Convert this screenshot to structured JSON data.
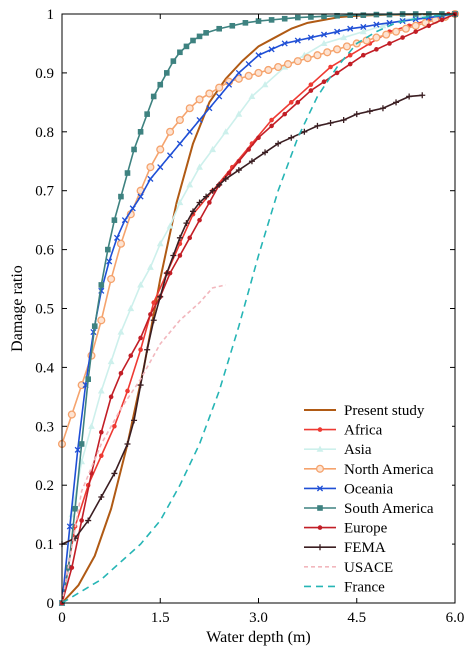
{
  "chart_data": {
    "type": "line",
    "xlabel": "Water depth (m)",
    "ylabel": "Damage ratio",
    "xlim": [
      0,
      6
    ],
    "ylim": [
      0,
      1
    ],
    "x_ticks": [
      0,
      1.5,
      3.0,
      4.5,
      6.0
    ],
    "x_tick_labels": [
      "0",
      "1.5",
      "3.0",
      "4.5",
      "6.0"
    ],
    "y_ticks": [
      0,
      0.1,
      0.2,
      0.3,
      0.4,
      0.5,
      0.6,
      0.7,
      0.8,
      0.9,
      1
    ],
    "y_tick_labels": [
      "0",
      "0.1",
      "0.2",
      "0.3",
      "0.4",
      "0.5",
      "0.6",
      "0.7",
      "0.8",
      "0.9",
      "1"
    ],
    "grid": false,
    "legend_position": "bottom-right",
    "series": [
      {
        "name": "Present study",
        "color": "#b05a14",
        "marker": "none",
        "dash": "",
        "x": [
          0,
          0.25,
          0.5,
          0.75,
          1.0,
          1.25,
          1.5,
          1.75,
          2.0,
          2.25,
          2.5,
          2.75,
          3.0,
          3.25,
          3.5,
          3.75,
          4.0,
          4.25,
          4.5,
          5.0,
          6.0
        ],
        "y": [
          0,
          0.03,
          0.08,
          0.16,
          0.27,
          0.4,
          0.55,
          0.68,
          0.78,
          0.85,
          0.89,
          0.92,
          0.945,
          0.96,
          0.975,
          0.985,
          0.99,
          0.995,
          0.997,
          0.999,
          1.0
        ]
      },
      {
        "name": "Africa",
        "color": "#ee3a33",
        "marker": "dot",
        "dash": "",
        "x": [
          0,
          0.2,
          0.4,
          0.6,
          0.8,
          1.0,
          1.2,
          1.4,
          1.6,
          1.8,
          2.0,
          2.3,
          2.6,
          2.9,
          3.2,
          3.5,
          3.8,
          4.1,
          4.4,
          4.7,
          5.0,
          5.3,
          5.6,
          5.9
        ],
        "y": [
          0,
          0.13,
          0.2,
          0.25,
          0.3,
          0.36,
          0.43,
          0.51,
          0.56,
          0.61,
          0.66,
          0.7,
          0.74,
          0.78,
          0.82,
          0.85,
          0.88,
          0.91,
          0.93,
          0.95,
          0.97,
          0.98,
          0.99,
          1.0
        ]
      },
      {
        "name": "Asia",
        "color": "#cdf0ec",
        "marker": "triangle",
        "dash": "",
        "x": [
          0,
          0.15,
          0.3,
          0.45,
          0.6,
          0.75,
          0.9,
          1.05,
          1.2,
          1.35,
          1.5,
          1.65,
          1.8,
          1.95,
          2.1,
          2.3,
          2.5,
          2.7,
          2.9,
          3.1,
          3.4,
          3.7,
          4.0,
          4.3,
          4.6,
          4.9,
          5.2,
          5.5,
          5.8
        ],
        "y": [
          0,
          0.15,
          0.24,
          0.3,
          0.36,
          0.41,
          0.46,
          0.5,
          0.54,
          0.57,
          0.61,
          0.64,
          0.68,
          0.71,
          0.74,
          0.77,
          0.8,
          0.83,
          0.86,
          0.88,
          0.91,
          0.93,
          0.95,
          0.96,
          0.97,
          0.98,
          0.99,
          0.995,
          1.0
        ]
      },
      {
        "name": "North America",
        "color": "#f5a36d",
        "marker": "circle",
        "dash": "",
        "x": [
          0,
          0.15,
          0.3,
          0.45,
          0.6,
          0.75,
          0.9,
          1.05,
          1.2,
          1.35,
          1.5,
          1.65,
          1.8,
          1.95,
          2.1,
          2.25,
          2.4,
          2.55,
          2.7,
          2.85,
          3.0,
          3.15,
          3.3,
          3.45,
          3.6,
          3.75,
          3.9,
          4.05,
          4.2,
          4.35,
          4.5,
          4.65,
          4.8,
          4.95,
          5.1,
          5.25,
          5.4,
          5.55,
          5.7,
          5.85,
          6.0
        ],
        "y": [
          0.27,
          0.32,
          0.37,
          0.42,
          0.48,
          0.55,
          0.61,
          0.66,
          0.7,
          0.74,
          0.77,
          0.8,
          0.82,
          0.84,
          0.855,
          0.865,
          0.875,
          0.885,
          0.89,
          0.895,
          0.9,
          0.905,
          0.91,
          0.915,
          0.92,
          0.925,
          0.93,
          0.935,
          0.94,
          0.945,
          0.95,
          0.955,
          0.96,
          0.965,
          0.97,
          0.975,
          0.98,
          0.985,
          0.99,
          0.995,
          1.0
        ]
      },
      {
        "name": "Oceania",
        "color": "#1f4fd6",
        "marker": "x",
        "dash": "",
        "x": [
          0,
          0.12,
          0.24,
          0.36,
          0.48,
          0.6,
          0.72,
          0.84,
          0.96,
          1.08,
          1.2,
          1.35,
          1.5,
          1.65,
          1.8,
          1.95,
          2.1,
          2.25,
          2.4,
          2.55,
          2.7,
          2.85,
          3.0,
          3.2,
          3.4,
          3.6,
          3.8,
          4.0,
          4.2,
          4.4,
          4.6,
          4.8,
          5.0,
          5.2,
          5.4,
          5.6,
          5.8,
          6.0
        ],
        "y": [
          0,
          0.13,
          0.26,
          0.37,
          0.46,
          0.53,
          0.58,
          0.62,
          0.65,
          0.67,
          0.69,
          0.72,
          0.74,
          0.76,
          0.78,
          0.8,
          0.82,
          0.84,
          0.86,
          0.88,
          0.9,
          0.915,
          0.93,
          0.94,
          0.95,
          0.955,
          0.96,
          0.965,
          0.97,
          0.975,
          0.978,
          0.982,
          0.985,
          0.988,
          0.991,
          0.994,
          0.997,
          1.0
        ]
      },
      {
        "name": "South America",
        "color": "#3e8280",
        "marker": "square",
        "dash": "",
        "x": [
          0,
          0.1,
          0.2,
          0.3,
          0.4,
          0.5,
          0.6,
          0.7,
          0.8,
          0.9,
          1.0,
          1.1,
          1.2,
          1.3,
          1.4,
          1.5,
          1.6,
          1.7,
          1.8,
          1.9,
          2.0,
          2.1,
          2.2,
          2.4,
          2.6,
          2.8,
          3.0,
          3.2,
          3.4,
          3.6,
          3.8,
          4.0,
          4.2,
          4.4,
          4.6,
          4.8,
          5.0,
          5.2,
          5.4,
          5.6,
          5.8,
          6.0
        ],
        "y": [
          0,
          0.06,
          0.16,
          0.27,
          0.38,
          0.47,
          0.54,
          0.6,
          0.65,
          0.69,
          0.73,
          0.77,
          0.8,
          0.83,
          0.86,
          0.88,
          0.9,
          0.92,
          0.935,
          0.945,
          0.955,
          0.962,
          0.968,
          0.975,
          0.98,
          0.985,
          0.988,
          0.99,
          0.992,
          0.994,
          0.995,
          0.996,
          0.997,
          0.998,
          0.998,
          0.999,
          0.999,
          1.0,
          1.0,
          1.0,
          1.0,
          1.0
        ]
      },
      {
        "name": "Europe",
        "color": "#c21e26",
        "marker": "dot",
        "dash": "",
        "x": [
          0,
          0.15,
          0.3,
          0.45,
          0.6,
          0.75,
          0.9,
          1.05,
          1.2,
          1.35,
          1.5,
          1.65,
          1.8,
          1.95,
          2.1,
          2.25,
          2.4,
          2.55,
          2.7,
          2.85,
          3.0,
          3.2,
          3.4,
          3.6,
          3.8,
          4.0,
          4.2,
          4.4,
          4.6,
          4.8,
          5.0,
          5.2,
          5.4,
          5.6,
          5.8,
          6.0
        ],
        "y": [
          0,
          0.06,
          0.14,
          0.22,
          0.29,
          0.35,
          0.39,
          0.42,
          0.45,
          0.49,
          0.52,
          0.56,
          0.59,
          0.62,
          0.65,
          0.68,
          0.71,
          0.73,
          0.75,
          0.77,
          0.79,
          0.81,
          0.83,
          0.85,
          0.87,
          0.885,
          0.9,
          0.915,
          0.93,
          0.94,
          0.95,
          0.96,
          0.97,
          0.98,
          0.99,
          1.0
        ]
      },
      {
        "name": "FEMA",
        "color": "#3b1e22",
        "marker": "plus",
        "dash": "",
        "x": [
          0,
          0.2,
          0.4,
          0.6,
          0.8,
          1.0,
          1.1,
          1.2,
          1.3,
          1.4,
          1.5,
          1.6,
          1.7,
          1.8,
          1.9,
          2.0,
          2.1,
          2.2,
          2.3,
          2.4,
          2.5,
          2.7,
          2.9,
          3.1,
          3.3,
          3.5,
          3.7,
          3.9,
          4.1,
          4.3,
          4.5,
          4.7,
          4.9,
          5.1,
          5.3,
          5.5
        ],
        "y": [
          0.1,
          0.11,
          0.14,
          0.18,
          0.22,
          0.27,
          0.31,
          0.37,
          0.43,
          0.48,
          0.52,
          0.56,
          0.59,
          0.62,
          0.645,
          0.665,
          0.68,
          0.69,
          0.7,
          0.71,
          0.72,
          0.735,
          0.75,
          0.765,
          0.78,
          0.79,
          0.8,
          0.81,
          0.815,
          0.82,
          0.83,
          0.835,
          0.84,
          0.85,
          0.86,
          0.862
        ]
      },
      {
        "name": "USACE",
        "color": "#f2b7bd",
        "marker": "none",
        "dash": "4,3",
        "x": [
          0,
          0.3,
          0.6,
          0.9,
          1.2,
          1.5,
          1.8,
          2.1,
          2.3,
          2.5
        ],
        "y": [
          0,
          0.19,
          0.27,
          0.33,
          0.38,
          0.44,
          0.48,
          0.51,
          0.535,
          0.54
        ]
      },
      {
        "name": "France",
        "color": "#26b5b5",
        "marker": "none",
        "dash": "7,5",
        "x": [
          0,
          0.3,
          0.6,
          0.9,
          1.2,
          1.5,
          1.8,
          2.1,
          2.4,
          2.7,
          3.0,
          3.3,
          3.6,
          3.9,
          4.2,
          4.5,
          4.8,
          5.1,
          5.4,
          5.7,
          6.0
        ],
        "y": [
          0,
          0.02,
          0.04,
          0.07,
          0.1,
          0.14,
          0.2,
          0.27,
          0.36,
          0.47,
          0.59,
          0.7,
          0.79,
          0.86,
          0.91,
          0.95,
          0.97,
          0.985,
          0.992,
          0.997,
          1.0
        ]
      }
    ]
  }
}
